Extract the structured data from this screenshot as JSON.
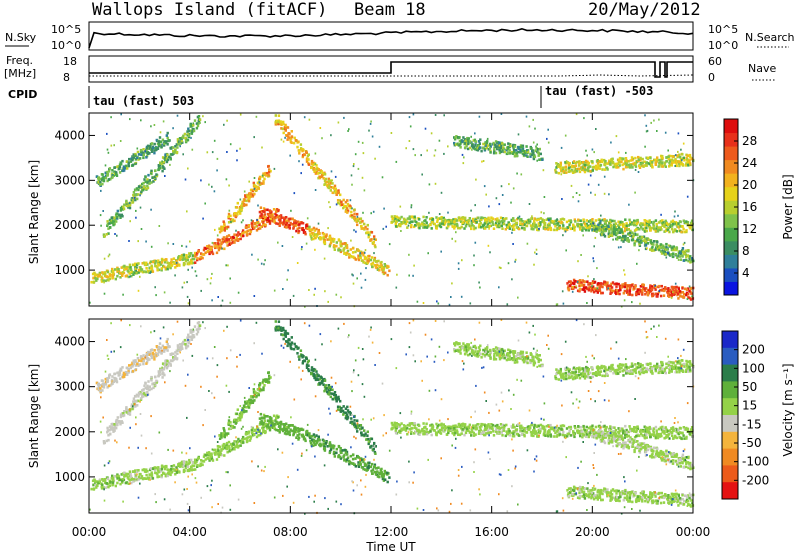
{
  "header": {
    "station": "Wallops Island (fitACF)",
    "beam": "Beam 18",
    "date": "20/May/2012"
  },
  "strip": {
    "nsky_label": "N.Sky",
    "nsky_ticks": [
      "10^5",
      "10^0"
    ],
    "nsearch_label": "N.Search",
    "nsearch_ticks": [
      "10^5",
      "10^0"
    ],
    "freq_label_1": "Freq.",
    "freq_label_2": "[MHz]",
    "freq_ticks": [
      "18",
      "8"
    ],
    "nave_label": "Nave",
    "nave_ticks": [
      "60",
      "0"
    ],
    "cpid_label": "CPID",
    "cpid_1": "tau (fast) 503",
    "cpid_2": "tau (fast) -503"
  },
  "chart_data": [
    {
      "type": "heatmap",
      "name": "Power",
      "ylabel": "Slant Range [km]",
      "y_ticks": [
        1000,
        2000,
        3000,
        4000
      ],
      "ylim": [
        200,
        4500
      ],
      "x_ticks": [
        "00:00",
        "04:00",
        "08:00",
        "12:00",
        "16:00",
        "20:00",
        "00:00"
      ],
      "xlim_hours": [
        0,
        24
      ],
      "colorbar_label": "Power [dB]",
      "colorbar_ticks": [
        4,
        8,
        12,
        16,
        20,
        24,
        28
      ],
      "colorbar_colors": [
        "#0a14e0",
        "#1a4fc0",
        "#2f7f9a",
        "#3b8d62",
        "#4aa84a",
        "#7fc24a",
        "#b8cf2e",
        "#e6d21a",
        "#f2b21e",
        "#f08a20",
        "#ee5a1c",
        "#e8301a",
        "#de0d0d"
      ],
      "colorbar_range": [
        0,
        32
      ],
      "echo_bands": [
        {
          "start": 0.1,
          "end": 4.2,
          "r0": 850,
          "r1": 1300,
          "val": 17
        },
        {
          "start": 4.2,
          "end": 7.5,
          "r0": 1300,
          "r1": 2300,
          "val": 25
        },
        {
          "start": 5.2,
          "end": 7.2,
          "r0": 1900,
          "r1": 3300,
          "val": 21
        },
        {
          "start": 6.8,
          "end": 8.7,
          "r0": 2300,
          "r1": 1900,
          "val": 26
        },
        {
          "start": 8.7,
          "end": 11.9,
          "r0": 1900,
          "r1": 1000,
          "val": 19
        },
        {
          "start": 7.4,
          "end": 11.4,
          "r0": 4400,
          "r1": 1600,
          "val": 20
        },
        {
          "start": 0.6,
          "end": 4.4,
          "r0": 1900,
          "r1": 4400,
          "val": 12
        },
        {
          "start": 0.3,
          "end": 3.2,
          "r0": 3000,
          "r1": 4000,
          "val": 11
        },
        {
          "start": 12.0,
          "end": 24.0,
          "r0": 2100,
          "r1": 2000,
          "val": 15
        },
        {
          "start": 18.5,
          "end": 24.0,
          "r0": 3300,
          "r1": 3500,
          "val": 17
        },
        {
          "start": 14.5,
          "end": 18.0,
          "r0": 3900,
          "r1": 3600,
          "val": 11
        },
        {
          "start": 19.0,
          "end": 24.0,
          "r0": 700,
          "r1": 500,
          "val": 27
        },
        {
          "start": 20.0,
          "end": 24.0,
          "r0": 2000,
          "r1": 1300,
          "val": 12
        }
      ]
    },
    {
      "type": "heatmap",
      "name": "Velocity",
      "ylabel": "Slant Range [km]",
      "y_ticks": [
        1000,
        2000,
        3000,
        4000
      ],
      "ylim": [
        200,
        4500
      ],
      "x_ticks": [
        "00:00",
        "04:00",
        "08:00",
        "12:00",
        "16:00",
        "20:00",
        "00:00"
      ],
      "xlim_hours": [
        0,
        24
      ],
      "xlabel": "Time UT",
      "colorbar_label": "Velocity [m s⁻¹]",
      "colorbar_ticks": [
        200,
        100,
        50,
        15,
        -15,
        -50,
        -100,
        -200
      ],
      "colorbar_colors": [
        "#1a28c8",
        "#2a5cc0",
        "#2b7d4a",
        "#5fb03a",
        "#94d248",
        "#c8c8c0",
        "#f4b43c",
        "#f08a22",
        "#ec5a1a",
        "#e41212"
      ],
      "echo_bands": [
        {
          "start": 0.1,
          "end": 4.2,
          "r0": 850,
          "r1": 1300,
          "val": 0
        },
        {
          "start": 4.2,
          "end": 7.5,
          "r0": 1300,
          "r1": 2300,
          "val": 5
        },
        {
          "start": 5.2,
          "end": 7.2,
          "r0": 1900,
          "r1": 3300,
          "val": 20
        },
        {
          "start": 6.8,
          "end": 8.7,
          "r0": 2300,
          "r1": 1900,
          "val": 30
        },
        {
          "start": 8.7,
          "end": 11.9,
          "r0": 1900,
          "r1": 1000,
          "val": 40
        },
        {
          "start": 7.4,
          "end": 11.4,
          "r0": 4400,
          "r1": 1600,
          "val": 60
        },
        {
          "start": 0.6,
          "end": 4.4,
          "r0": 1900,
          "r1": 4400,
          "val": -30
        },
        {
          "start": 0.3,
          "end": 3.2,
          "r0": 3000,
          "r1": 4000,
          "val": -40
        },
        {
          "start": 12.0,
          "end": 24.0,
          "r0": 2100,
          "r1": 2000,
          "val": 0
        },
        {
          "start": 18.5,
          "end": 24.0,
          "r0": 3300,
          "r1": 3500,
          "val": 0
        },
        {
          "start": 14.5,
          "end": 18.0,
          "r0": 3900,
          "r1": 3600,
          "val": 0
        },
        {
          "start": 19.0,
          "end": 24.0,
          "r0": 700,
          "r1": 500,
          "val": 0
        },
        {
          "start": 20.0,
          "end": 24.0,
          "r0": 2000,
          "r1": 1300,
          "val": -10
        }
      ]
    }
  ]
}
